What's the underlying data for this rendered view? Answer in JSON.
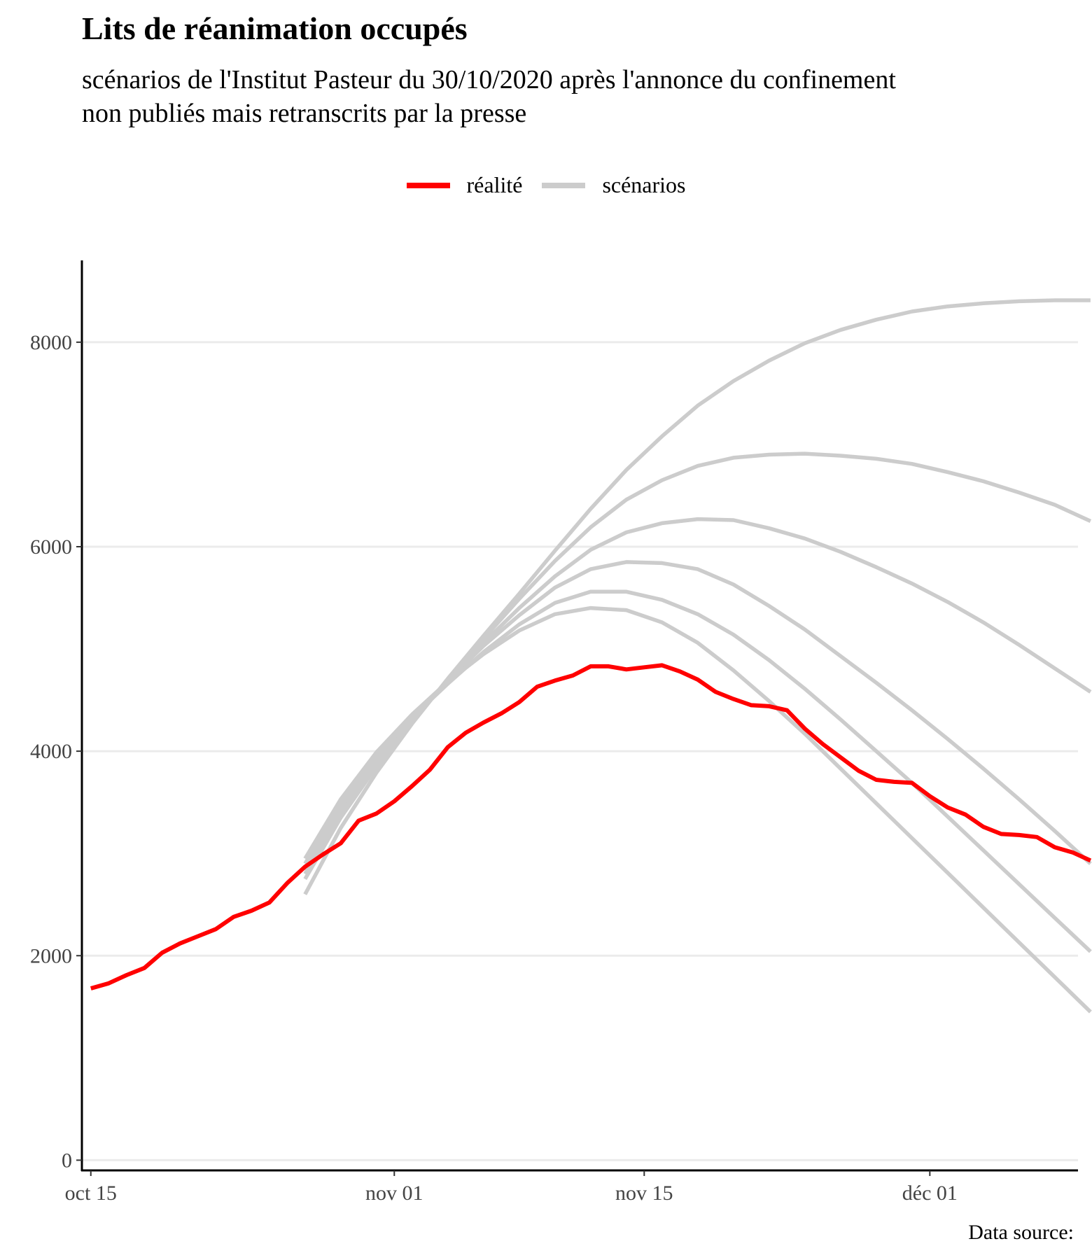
{
  "title": "Lits de réanimation occupés",
  "subtitle_line1": "scénarios de l'Institut Pasteur du 30/10/2020 après l'annonce du confinement",
  "subtitle_line2": "non publiés mais retranscrits par la presse",
  "caption": "Data source:",
  "legend": [
    {
      "label": "réalité",
      "color": "#ff0000"
    },
    {
      "label": "scénarios",
      "color": "#cccccc"
    }
  ],
  "chart_data": {
    "type": "line",
    "x_start_date": "2020-10-15",
    "xlim_days": [
      -0.5,
      55.3
    ],
    "ylim": [
      -100,
      8800
    ],
    "y_ticks": [
      0,
      2000,
      4000,
      6000,
      8000
    ],
    "y_tick_labels": [
      "0",
      "2000",
      "4000",
      "6000",
      "8000"
    ],
    "x_ticks": [
      0,
      17,
      31,
      47
    ],
    "x_tick_labels": [
      "oct 15",
      "nov 01",
      "nov 15",
      "déc 01"
    ],
    "grid": "horizontal",
    "legend_position": "top",
    "series": [
      {
        "name": "réalité",
        "color": "#ff0000",
        "x": [
          0,
          1,
          2,
          3,
          4,
          5,
          6,
          7,
          8,
          9,
          10,
          11,
          12,
          13,
          14,
          15,
          16,
          17,
          18,
          19,
          20,
          21,
          22,
          23,
          24,
          25,
          26,
          27,
          28,
          29,
          30,
          31,
          32,
          33,
          34,
          35,
          36,
          37,
          38,
          39,
          40,
          41,
          42,
          43,
          44,
          45,
          46,
          47,
          48,
          49,
          50,
          51,
          52,
          53,
          54,
          55,
          56
        ],
        "y": [
          1680,
          1730,
          1810,
          1880,
          2030,
          2120,
          2190,
          2260,
          2380,
          2440,
          2520,
          2710,
          2870,
          2990,
          3100,
          3320,
          3390,
          3510,
          3660,
          3820,
          4040,
          4180,
          4280,
          4370,
          4480,
          4630,
          4690,
          4740,
          4830,
          4830,
          4800,
          4820,
          4840,
          4780,
          4700,
          4580,
          4510,
          4450,
          4440,
          4400,
          4220,
          4070,
          3940,
          3810,
          3720,
          3700,
          3690,
          3560,
          3450,
          3380,
          3260,
          3190,
          3180,
          3160,
          3060,
          3010,
          2930
        ]
      },
      {
        "name": "",
        "color": "#cccccc",
        "x": [
          12,
          14,
          16,
          18,
          20,
          22,
          24,
          26,
          28,
          30,
          32,
          34,
          36,
          38,
          40,
          42,
          44,
          46,
          48,
          50,
          52,
          54,
          56
        ],
        "y": [
          2600,
          3250,
          3790,
          4270,
          4710,
          5130,
          5540,
          5960,
          6370,
          6750,
          7080,
          7380,
          7620,
          7820,
          7990,
          8120,
          8220,
          8300,
          8350,
          8380,
          8400,
          8410,
          8410
        ]
      },
      {
        "name": "",
        "color": "#cccccc",
        "x": [
          12,
          14,
          16,
          18,
          20,
          22,
          24,
          26,
          28,
          30,
          32,
          34,
          36,
          38,
          40,
          42,
          44,
          46,
          48,
          50,
          52,
          54,
          56
        ],
        "y": [
          2750,
          3350,
          3850,
          4290,
          4700,
          5100,
          5490,
          5860,
          6190,
          6460,
          6650,
          6790,
          6870,
          6900,
          6910,
          6890,
          6860,
          6810,
          6730,
          6640,
          6530,
          6410,
          6250
        ]
      },
      {
        "name": "",
        "color": "#cccccc",
        "x": [
          12,
          14,
          16,
          18,
          20,
          22,
          24,
          26,
          28,
          30,
          32,
          34,
          36,
          38,
          40,
          42,
          44,
          46,
          48,
          50,
          52,
          54,
          56
        ],
        "y": [
          2800,
          3400,
          3880,
          4300,
          4690,
          5060,
          5400,
          5710,
          5970,
          6140,
          6230,
          6270,
          6260,
          6180,
          6080,
          5950,
          5800,
          5640,
          5460,
          5260,
          5040,
          4810,
          4580
        ]
      },
      {
        "name": "",
        "color": "#cccccc",
        "x": [
          12,
          14,
          16,
          18,
          20,
          22,
          24,
          26,
          28,
          30,
          32,
          34,
          36,
          38,
          40,
          42,
          44,
          46,
          48,
          50,
          52,
          54,
          56
        ],
        "y": [
          2850,
          3450,
          3920,
          4320,
          4690,
          5030,
          5330,
          5600,
          5780,
          5850,
          5840,
          5780,
          5630,
          5420,
          5190,
          4930,
          4670,
          4400,
          4120,
          3830,
          3530,
          3220,
          2900
        ]
      },
      {
        "name": "",
        "color": "#cccccc",
        "x": [
          12,
          14,
          16,
          18,
          20,
          22,
          24,
          26,
          28,
          30,
          32,
          34,
          36,
          38,
          40,
          42,
          44,
          46,
          48,
          50,
          52,
          54,
          56
        ],
        "y": [
          2900,
          3490,
          3950,
          4330,
          4660,
          4970,
          5240,
          5450,
          5560,
          5560,
          5480,
          5340,
          5140,
          4890,
          4610,
          4310,
          4000,
          3690,
          3360,
          3030,
          2700,
          2370,
          2040
        ]
      },
      {
        "name": "",
        "color": "#cccccc",
        "x": [
          12,
          14,
          16,
          18,
          20,
          22,
          24,
          26,
          28,
          30,
          32,
          34,
          36,
          38,
          40,
          42,
          44,
          46,
          48,
          50,
          52,
          54,
          56
        ],
        "y": [
          2950,
          3530,
          3990,
          4360,
          4680,
          4950,
          5180,
          5340,
          5400,
          5380,
          5260,
          5060,
          4790,
          4490,
          4170,
          3830,
          3490,
          3150,
          2810,
          2470,
          2130,
          1790,
          1450
        ]
      }
    ]
  }
}
